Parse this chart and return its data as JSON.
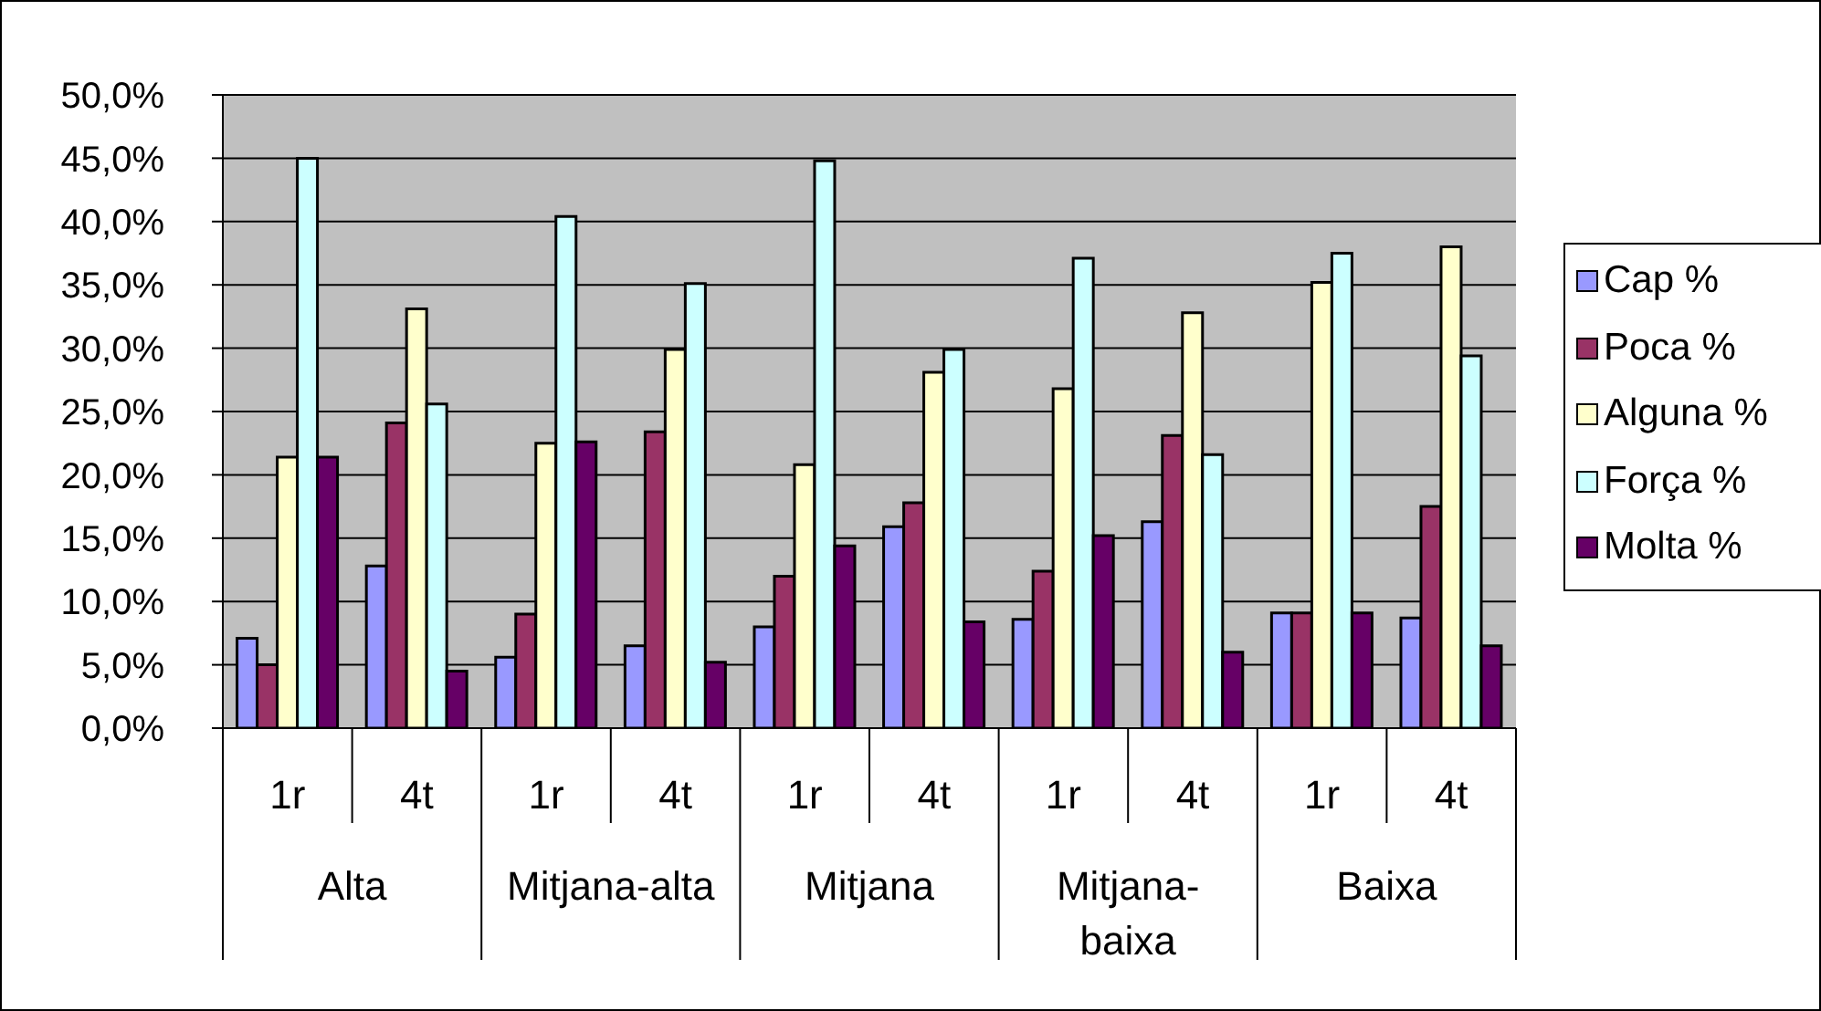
{
  "chart_data": {
    "type": "bar",
    "categories": [
      "1r",
      "4t",
      "1r",
      "4t",
      "1r",
      "4t",
      "1r",
      "4t",
      "1r",
      "4t"
    ],
    "annotations": [
      "Alta",
      "Mitjana-alta",
      "Mitjana",
      "Mitjana-baixa",
      "Baixa"
    ],
    "series": [
      {
        "name": "Cap %",
        "color": "#9999ff",
        "values": [
          7.1,
          12.8,
          5.6,
          6.5,
          8.0,
          15.9,
          8.6,
          16.3,
          9.1,
          8.7
        ]
      },
      {
        "name": "Poca %",
        "color": "#993366",
        "values": [
          5.0,
          24.1,
          9.0,
          23.4,
          12.0,
          17.8,
          12.4,
          23.1,
          9.1,
          17.5
        ]
      },
      {
        "name": "Alguna %",
        "color": "#ffffcc",
        "values": [
          21.4,
          33.1,
          22.5,
          29.9,
          20.8,
          28.1,
          26.8,
          32.8,
          35.2,
          38.0
        ]
      },
      {
        "name": "Força %",
        "color": "#ccffff",
        "values": [
          45.0,
          25.6,
          40.4,
          35.1,
          44.8,
          29.9,
          37.1,
          21.6,
          37.5,
          29.4
        ]
      },
      {
        "name": "Molta %",
        "color": "#660066",
        "values": [
          21.4,
          4.5,
          22.6,
          5.2,
          14.4,
          8.4,
          15.2,
          6.0,
          9.1,
          6.5
        ]
      }
    ],
    "ylim": [
      0,
      50
    ],
    "yticks": [
      {
        "value": 0,
        "label": "0,0%"
      },
      {
        "value": 5,
        "label": "5,0%"
      },
      {
        "value": 10,
        "label": "10,0%"
      },
      {
        "value": 15,
        "label": "15,0%"
      },
      {
        "value": 20,
        "label": "20,0%"
      },
      {
        "value": 25,
        "label": "25,0%"
      },
      {
        "value": 30,
        "label": "30,0%"
      },
      {
        "value": 35,
        "label": "35,0%"
      },
      {
        "value": 40,
        "label": "40,0%"
      },
      {
        "value": 45,
        "label": "45,0%"
      },
      {
        "value": 50,
        "label": "50,0%"
      }
    ],
    "grid": "y",
    "legend": "right"
  }
}
